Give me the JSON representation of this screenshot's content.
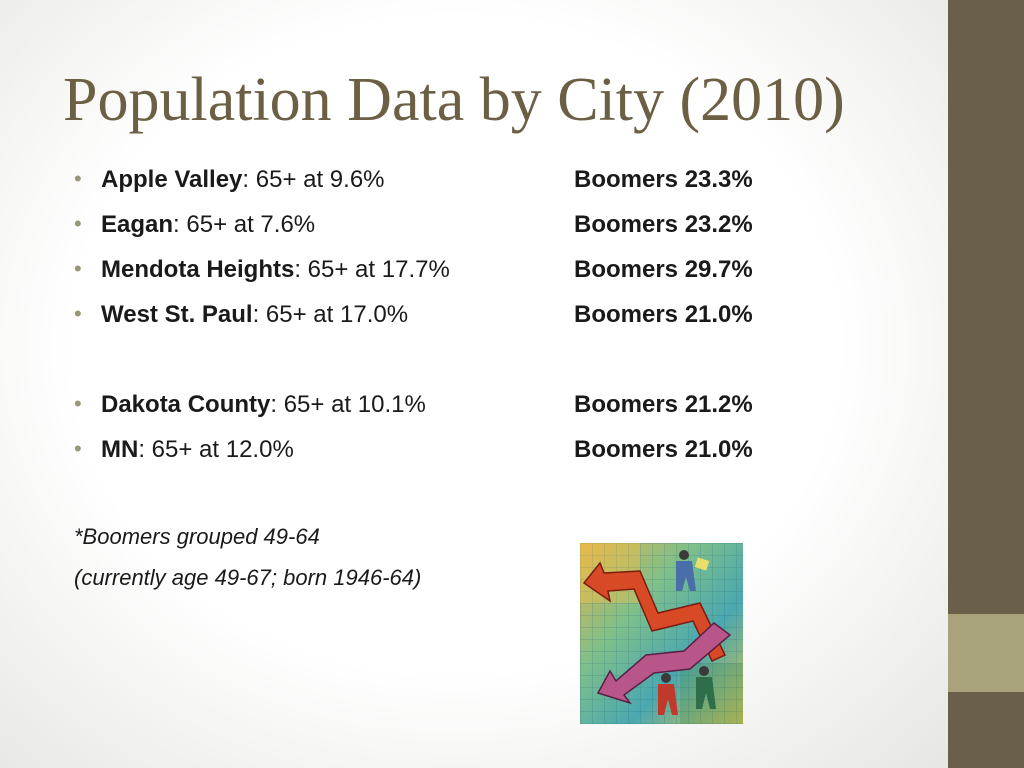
{
  "title": "Population Data by City (2010)",
  "rows": [
    {
      "city": "Apple Valley",
      "rate": ": 65+ at 9.6%",
      "boomers": "Boomers 23.3%"
    },
    {
      "city": "Eagan",
      "rate": ": 65+ at 7.6%",
      "boomers": "Boomers 23.2%"
    },
    {
      "city": "Mendota Heights",
      "rate": ": 65+ at 17.7%",
      "boomers": "Boomers 29.7%"
    },
    {
      "city": "West St. Paul",
      "rate": ": 65+ at 17.0%",
      "boomers": "Boomers 21.0%"
    },
    {
      "city": "Dakota County",
      "rate": ": 65+ at 10.1%",
      "boomers": "Boomers 21.2%"
    },
    {
      "city": "MN",
      "rate": ": 65+ at 12.0%",
      "boomers": "Boomers 21.0%"
    }
  ],
  "bullet_char": "•",
  "notes": {
    "line1": "*Boomers grouped 49-64",
    "line2": "(currently age 49-67; born 1946-64)"
  },
  "colors": {
    "title": "#6b5f44",
    "sidebar_dark": "#6a604a",
    "sidebar_accent": "#a8a37a",
    "bullet": "#9a9777"
  },
  "clipart": {
    "icon": "stock-chart-arrows-illustration"
  }
}
